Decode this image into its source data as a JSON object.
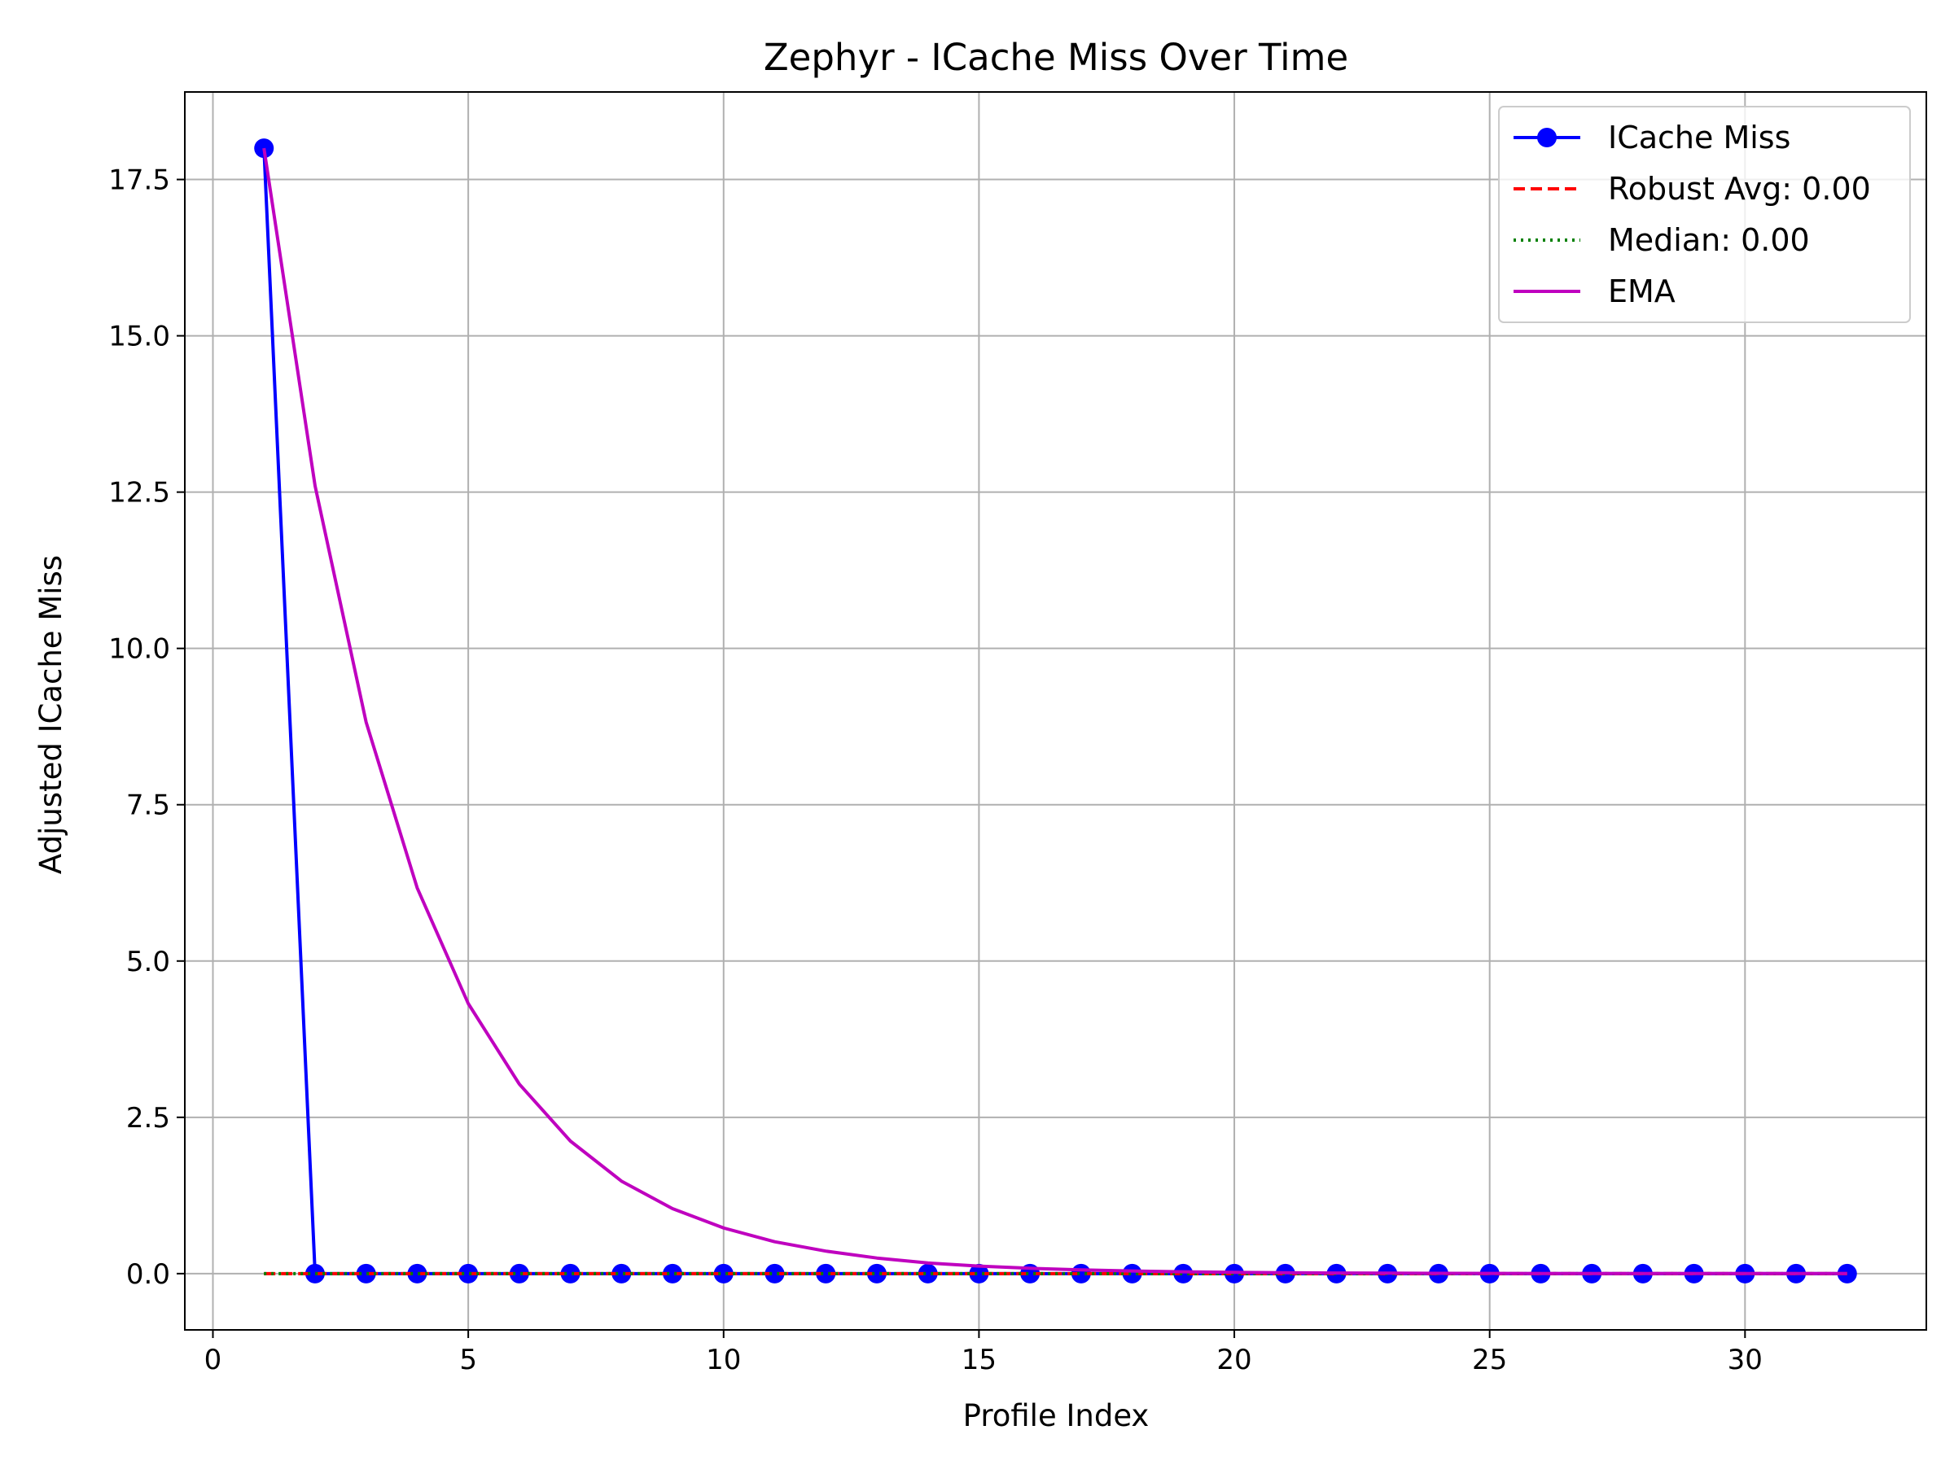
{
  "chart_data": {
    "type": "line",
    "title": "Zephyr - ICache Miss Over Time",
    "xlabel": "Profile Index",
    "ylabel": "Adjusted ICache Miss",
    "xlim": [
      -0.55,
      33.55
    ],
    "ylim": [
      -0.9,
      18.9
    ],
    "xticks": [
      0,
      5,
      10,
      15,
      20,
      25,
      30
    ],
    "yticks": [
      0.0,
      2.5,
      5.0,
      7.5,
      10.0,
      12.5,
      15.0,
      17.5
    ],
    "xtick_labels": [
      "0",
      "5",
      "10",
      "15",
      "20",
      "25",
      "30"
    ],
    "ytick_labels": [
      "0.0",
      "2.5",
      "5.0",
      "7.5",
      "10.0",
      "12.5",
      "15.0",
      "17.5"
    ],
    "grid": true,
    "legend_position": "top-right",
    "series": [
      {
        "name": "ICache Miss",
        "color": "#0000ff",
        "style": "solid-marker",
        "x": [
          1,
          2,
          3,
          4,
          5,
          6,
          7,
          8,
          9,
          10,
          11,
          12,
          13,
          14,
          15,
          16,
          17,
          18,
          19,
          20,
          21,
          22,
          23,
          24,
          25,
          26,
          27,
          28,
          29,
          30,
          31,
          32
        ],
        "y": [
          18,
          0,
          0,
          0,
          0,
          0,
          0,
          0,
          0,
          0,
          0,
          0,
          0,
          0,
          0,
          0,
          0,
          0,
          0,
          0,
          0,
          0,
          0,
          0,
          0,
          0,
          0,
          0,
          0,
          0,
          0,
          0
        ]
      },
      {
        "name": "Robust Avg: 0.00",
        "color": "#ff0000",
        "style": "dashed",
        "x": [
          1,
          32
        ],
        "y": [
          0,
          0
        ]
      },
      {
        "name": "Median: 0.00",
        "color": "#008000",
        "style": "dotted",
        "x": [
          1,
          32
        ],
        "y": [
          0,
          0
        ]
      },
      {
        "name": "EMA",
        "color": "#bf00bf",
        "style": "solid",
        "x": [
          1,
          2,
          3,
          4,
          5,
          6,
          7,
          8,
          9,
          10,
          11,
          12,
          13,
          14,
          15,
          16,
          17,
          18,
          19,
          20,
          21,
          22,
          23,
          24,
          25,
          26,
          27,
          28,
          29,
          30,
          31,
          32
        ],
        "y": [
          18,
          12.6,
          8.82,
          6.17,
          4.32,
          3.03,
          2.12,
          1.48,
          1.04,
          0.73,
          0.51,
          0.36,
          0.25,
          0.17,
          0.12,
          0.085,
          0.06,
          0.042,
          0.029,
          0.02,
          0.014,
          0.01,
          0.007,
          0.005,
          0.003,
          0.002,
          0.0016,
          0.0011,
          0.0008,
          0.0005,
          0.0004,
          0.0003
        ]
      }
    ]
  }
}
